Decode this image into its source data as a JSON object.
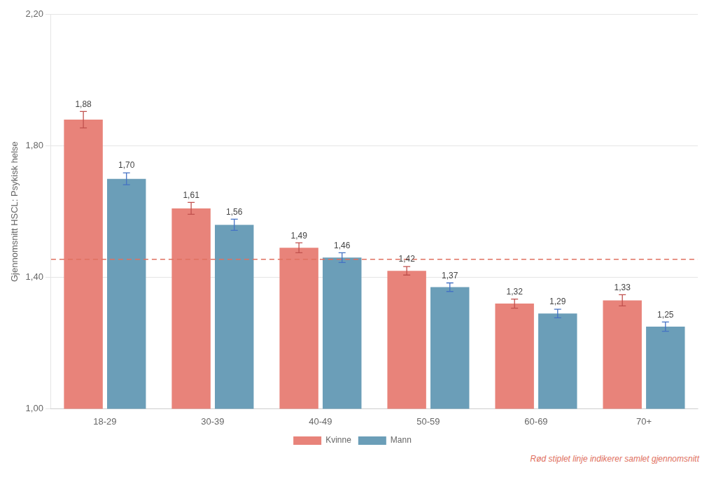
{
  "chart_data": {
    "type": "bar",
    "categories": [
      "18-29",
      "30-39",
      "40-49",
      "50-59",
      "60-69",
      "70+"
    ],
    "series": [
      {
        "name": "Kvinne",
        "color": "#E8837A",
        "values": [
          1.88,
          1.61,
          1.49,
          1.42,
          1.32,
          1.33
        ],
        "value_labels": [
          "1,88",
          "1,61",
          "1,49",
          "1,42",
          "1,32",
          "1,33"
        ],
        "errors": [
          0.025,
          0.018,
          0.015,
          0.013,
          0.014,
          0.017
        ],
        "error_color": "#C0504D"
      },
      {
        "name": "Mann",
        "color": "#6B9EB8",
        "values": [
          1.7,
          1.56,
          1.46,
          1.37,
          1.29,
          1.25
        ],
        "value_labels": [
          "1,70",
          "1,56",
          "1,46",
          "1,37",
          "1,29",
          "1,25"
        ],
        "errors": [
          0.018,
          0.017,
          0.015,
          0.013,
          0.013,
          0.014
        ],
        "error_color": "#4472C4"
      }
    ],
    "ylabel": "Gjennomsnitt HSCL: Psykisk helse",
    "ylim": [
      1.0,
      2.2
    ],
    "yticks": [
      {
        "value": 1.0,
        "label": "1,00"
      },
      {
        "value": 1.4,
        "label": "1,40"
      },
      {
        "value": 1.8,
        "label": "1,80"
      },
      {
        "value": 2.2,
        "label": "2,20"
      }
    ],
    "grid": true,
    "legend": "bottom",
    "data_labels": true,
    "reference_line": {
      "y": 1.455,
      "color": "#E07060",
      "line_style": "dashed"
    },
    "annotations": [
      {
        "text": "Rød stiplet linje indikerer samlet gjennomsnitt",
        "color": "#E07060"
      }
    ]
  }
}
